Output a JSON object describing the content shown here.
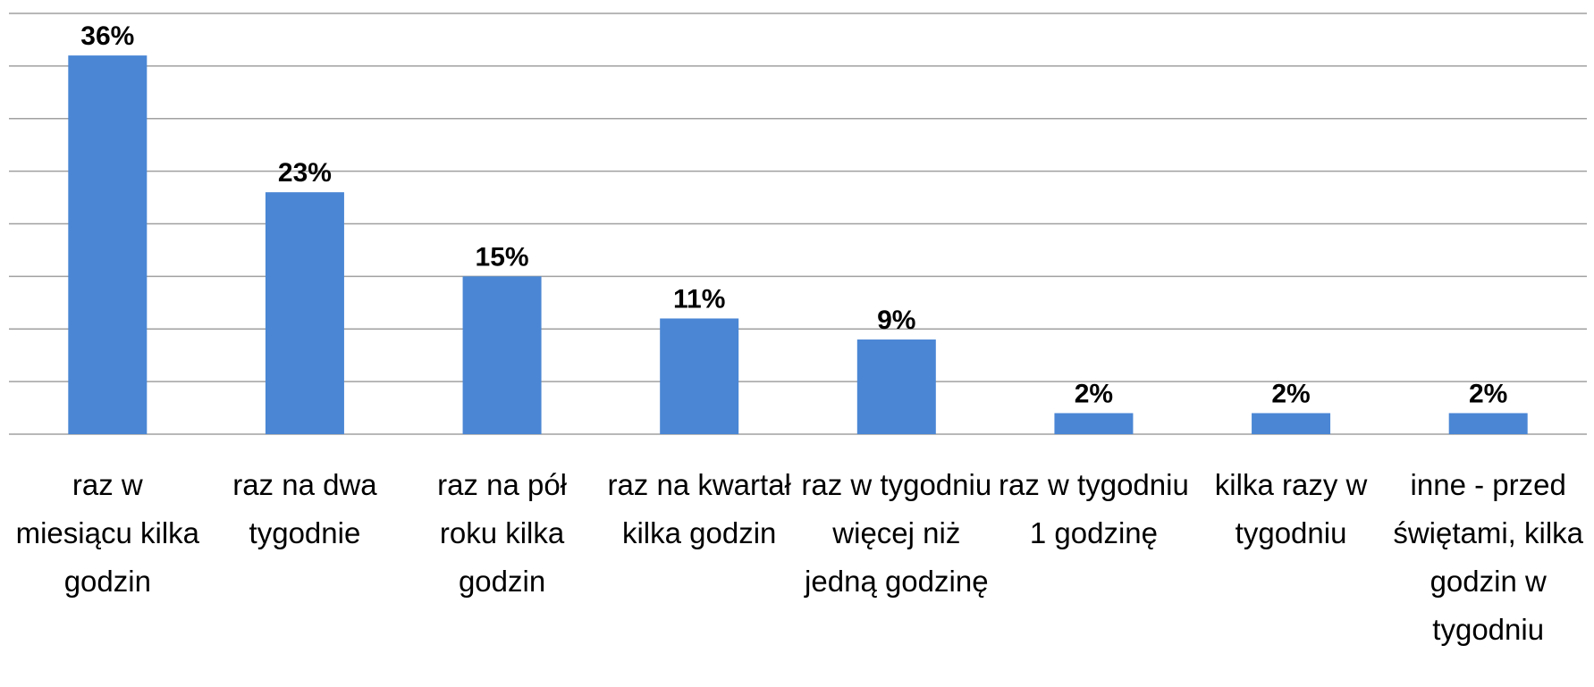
{
  "chart_data": {
    "type": "bar",
    "categories": [
      "raz w miesiącu kilka godzin",
      "raz na dwa tygodnie",
      "raz na pół roku kilka godzin",
      "raz na kwartał kilka godzin",
      "raz w tygodniu więcej niż jedną godzinę",
      "raz w tygodniu 1 godzinę",
      "kilka razy w tygodniu",
      "inne - przed świętami, kilka godzin w tygodniu"
    ],
    "values": [
      36,
      23,
      15,
      11,
      9,
      2,
      2,
      2
    ],
    "value_labels": [
      "36%",
      "23%",
      "15%",
      "11%",
      "9%",
      "2%",
      "2%",
      "2%"
    ],
    "color": "#4a86d4",
    "ylim": [
      0,
      40
    ],
    "yticks": [
      0,
      5,
      10,
      15,
      20,
      25,
      30,
      35,
      40
    ],
    "grid": true
  }
}
